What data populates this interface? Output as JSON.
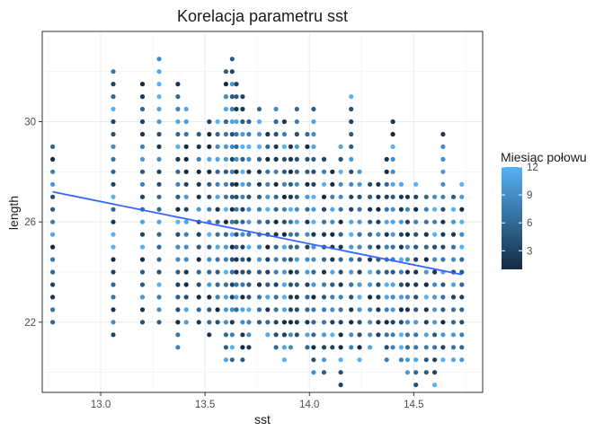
{
  "chart_data": {
    "type": "scatter",
    "title": "Korelacja parametru sst",
    "xlabel": "sst",
    "ylabel": "length",
    "xlim": [
      12.72,
      14.83
    ],
    "ylim": [
      19.2,
      33.6
    ],
    "x_ticks": [
      13.0,
      13.5,
      14.0,
      14.5
    ],
    "x_tick_labels": [
      "13.0",
      "13.5",
      "14.0",
      "14.5"
    ],
    "y_ticks": [
      22,
      26,
      30
    ],
    "y_tick_labels": [
      "22",
      "26",
      "30"
    ],
    "grid": true,
    "legend": {
      "title": "Miesiąc połowu",
      "placement": "right",
      "ticks": [
        3,
        6,
        9,
        12
      ],
      "tick_labels": [
        "3",
        "6",
        "9",
        "12"
      ],
      "range": [
        1,
        12
      ],
      "color_low": "#132b43",
      "color_high": "#56b1f7"
    },
    "trend_line": {
      "x": [
        12.77,
        14.73
      ],
      "y": [
        27.2,
        23.9
      ],
      "color": "#3366ff"
    },
    "point_columns": [
      {
        "x": 12.77,
        "y": [
          22,
          29
        ]
      },
      {
        "x": 13.06,
        "y": [
          21.5,
          32
        ]
      },
      {
        "x": 13.2,
        "y": [
          22,
          31.5
        ]
      },
      {
        "x": 13.28,
        "y": [
          22,
          32.5
        ]
      },
      {
        "x": 13.37,
        "y": [
          21,
          31.5
        ]
      },
      {
        "x": 13.41,
        "y": [
          22,
          30.5
        ]
      },
      {
        "x": 13.47,
        "y": [
          22,
          29.5
        ]
      },
      {
        "x": 13.52,
        "y": [
          21.5,
          30
        ]
      },
      {
        "x": 13.56,
        "y": [
          22,
          30
        ]
      },
      {
        "x": 13.6,
        "y": [
          20.5,
          32
        ]
      },
      {
        "x": 13.63,
        "y": [
          20.5,
          32.5
        ]
      },
      {
        "x": 13.65,
        "y": [
          22.5,
          31.5
        ]
      },
      {
        "x": 13.68,
        "y": [
          20.5,
          31
        ]
      },
      {
        "x": 13.71,
        "y": [
          21,
          30
        ]
      },
      {
        "x": 13.76,
        "y": [
          22,
          30.5
        ]
      },
      {
        "x": 13.8,
        "y": [
          21.5,
          29.5
        ]
      },
      {
        "x": 13.84,
        "y": [
          21,
          30.5
        ]
      },
      {
        "x": 13.88,
        "y": [
          20.5,
          30
        ]
      },
      {
        "x": 13.91,
        "y": [
          21,
          29
        ]
      },
      {
        "x": 13.94,
        "y": [
          21.5,
          30.5
        ]
      },
      {
        "x": 13.99,
        "y": [
          21,
          29.5
        ]
      },
      {
        "x": 14.02,
        "y": [
          20,
          30.5
        ]
      },
      {
        "x": 14.07,
        "y": [
          20,
          28.5
        ]
      },
      {
        "x": 14.11,
        "y": [
          21,
          28
        ]
      },
      {
        "x": 14.15,
        "y": [
          19.5,
          29
        ]
      },
      {
        "x": 14.2,
        "y": [
          21,
          31
        ]
      },
      {
        "x": 14.24,
        "y": [
          20.5,
          28
        ]
      },
      {
        "x": 14.29,
        "y": [
          21,
          27.5
        ]
      },
      {
        "x": 14.33,
        "y": [
          21.5,
          27.5
        ]
      },
      {
        "x": 14.37,
        "y": [
          20.5,
          28.5
        ]
      },
      {
        "x": 14.4,
        "y": [
          21,
          30
        ]
      },
      {
        "x": 14.44,
        "y": [
          20.5,
          27.5
        ]
      },
      {
        "x": 14.47,
        "y": [
          20,
          27
        ]
      },
      {
        "x": 14.51,
        "y": [
          19.5,
          27.5
        ]
      },
      {
        "x": 14.56,
        "y": [
          20,
          27
        ]
      },
      {
        "x": 14.6,
        "y": [
          19.5,
          27
        ]
      },
      {
        "x": 14.64,
        "y": [
          20.5,
          29.5
        ]
      },
      {
        "x": 14.69,
        "y": [
          20.5,
          27
        ]
      },
      {
        "x": 14.73,
        "y": [
          20.5,
          27.5
        ]
      }
    ],
    "point_step": 0.5
  }
}
